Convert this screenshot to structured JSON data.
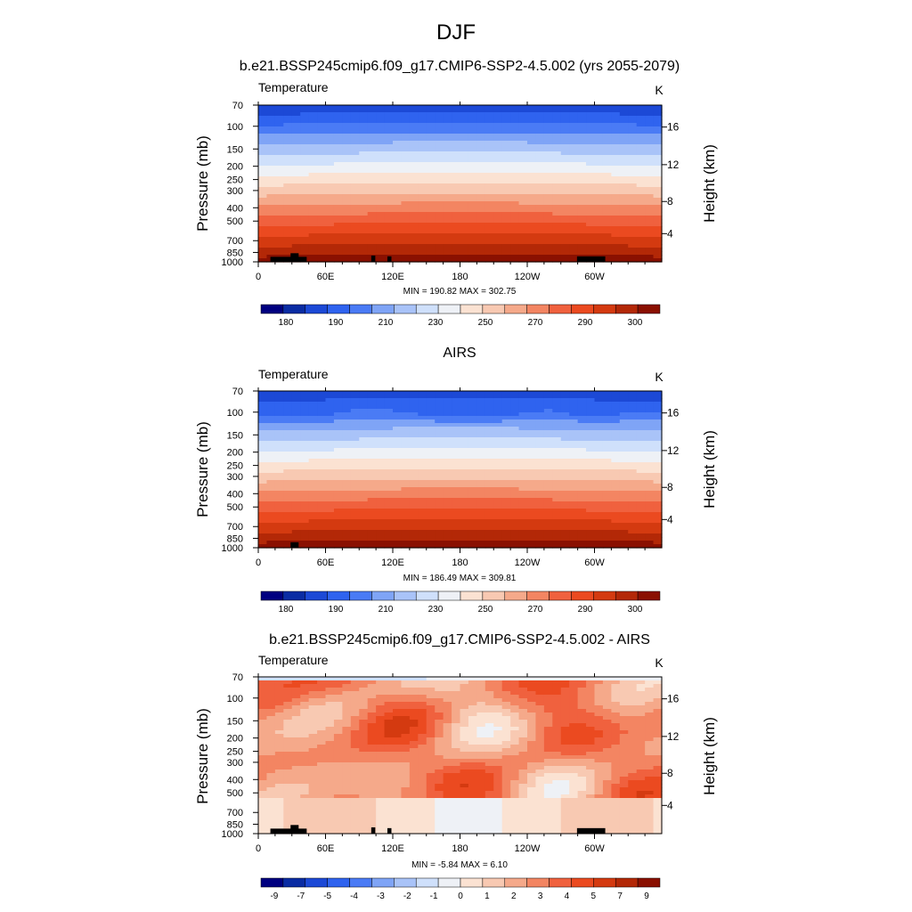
{
  "figure": {
    "title": "DJF"
  },
  "colors": {
    "abs": [
      "#000080",
      "#0a2ca3",
      "#1c49d6",
      "#2f63ef",
      "#4a7bf5",
      "#7fa4f6",
      "#a9c3f8",
      "#cfe0fb",
      "#eef1f6",
      "#fbe2d2",
      "#f8c9b2",
      "#f5a98a",
      "#f38562",
      "#f0613e",
      "#eb4a20",
      "#d43a10",
      "#b32807",
      "#8a1001"
    ],
    "diff": [
      "#000080",
      "#0a2ca3",
      "#1c49d6",
      "#2f63ef",
      "#4a7bf5",
      "#7fa4f6",
      "#a9c3f8",
      "#cfe0fb",
      "#eef1f6",
      "#fbe2d2",
      "#f8c9b2",
      "#f5a98a",
      "#f38562",
      "#f0613e",
      "#eb4a20",
      "#d43a10",
      "#b32807",
      "#8a1001"
    ],
    "terrain": "#000000"
  },
  "chart_data": [
    {
      "type": "heatmap",
      "id": "model",
      "title": "b.e21.BSSP245cmip6.f09_g17.CMIP6-SSP2-4.5.002 (yrs 2055-2079)",
      "variable": "Temperature",
      "units": "K",
      "ylabel": "Pressure (mb)",
      "y2label": "Height (km)",
      "x_ticks": [
        "0",
        "60E",
        "120E",
        "180",
        "120W",
        "60W"
      ],
      "y_ticks": [
        "70",
        "100",
        "150",
        "200",
        "250",
        "300",
        "400",
        "500",
        "700",
        "850",
        "1000"
      ],
      "y2_ticks": [
        "16",
        "12",
        "8",
        "4"
      ],
      "stats": "MIN = 190.82  MAX = 302.75",
      "colorbar_labels": [
        "180",
        "190",
        "210",
        "230",
        "250",
        "270",
        "290",
        "300"
      ],
      "min": 190.82,
      "max": 302.75
    },
    {
      "type": "heatmap",
      "id": "obs",
      "title": "AIRS",
      "variable": "Temperature",
      "units": "K",
      "ylabel": "Pressure (mb)",
      "y2label": "Height (km)",
      "x_ticks": [
        "0",
        "60E",
        "120E",
        "180",
        "120W",
        "60W"
      ],
      "y_ticks": [
        "70",
        "100",
        "150",
        "200",
        "250",
        "300",
        "400",
        "500",
        "700",
        "850",
        "1000"
      ],
      "y2_ticks": [
        "16",
        "12",
        "8",
        "4"
      ],
      "stats": "MIN = 186.49  MAX = 309.81",
      "colorbar_labels": [
        "180",
        "190",
        "210",
        "230",
        "250",
        "270",
        "290",
        "300"
      ],
      "min": 186.49,
      "max": 309.81
    },
    {
      "type": "heatmap",
      "id": "diff",
      "title": "b.e21.BSSP245cmip6.f09_g17.CMIP6-SSP2-4.5.002 - AIRS",
      "variable": "Temperature",
      "units": "K",
      "ylabel": "Pressure (mb)",
      "y2label": "Height (km)",
      "x_ticks": [
        "0",
        "60E",
        "120E",
        "180",
        "120W",
        "60W"
      ],
      "y_ticks": [
        "70",
        "100",
        "150",
        "200",
        "250",
        "300",
        "400",
        "500",
        "700",
        "850",
        "1000"
      ],
      "y2_ticks": [
        "16",
        "12",
        "8",
        "4"
      ],
      "stats": "MIN =  -5.84  MAX =   6.10",
      "colorbar_labels": [
        "-9",
        "-7",
        "-5",
        "-4",
        "-3",
        "-2",
        "-1",
        "0",
        "1",
        "2",
        "3",
        "4",
        "5",
        "7",
        "9"
      ],
      "min": -5.84,
      "max": 6.1
    }
  ]
}
